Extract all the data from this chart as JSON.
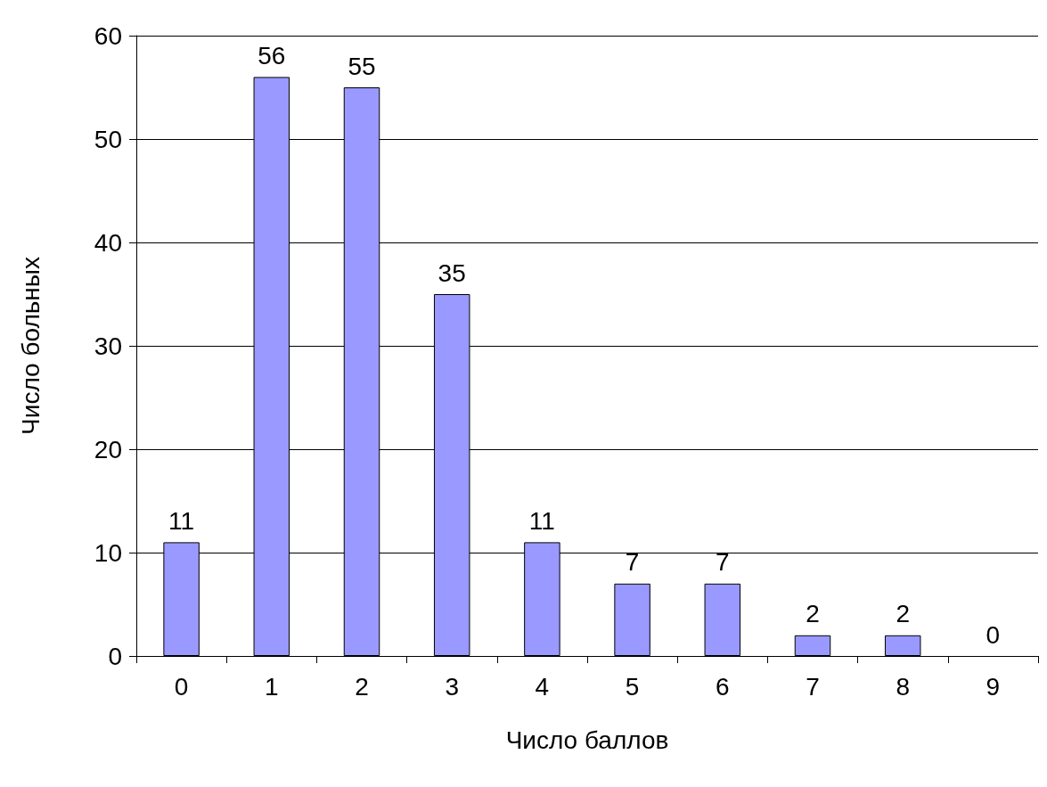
{
  "chart_data": {
    "type": "bar",
    "xlabel": "Число баллов",
    "ylabel": "Число больных",
    "categories": [
      "0",
      "1",
      "2",
      "3",
      "4",
      "5",
      "6",
      "7",
      "8",
      "9"
    ],
    "values": [
      11,
      56,
      55,
      35,
      11,
      7,
      7,
      2,
      2,
      0
    ],
    "color": "#9999ff",
    "ylim": [
      0,
      60
    ],
    "yticks": [
      0,
      10,
      20,
      30,
      40,
      50,
      60
    ],
    "grid": "y",
    "data_labels": true
  }
}
